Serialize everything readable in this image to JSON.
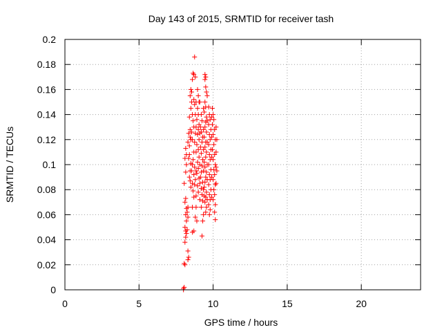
{
  "chart_data": {
    "type": "scatter",
    "title": "Day 143 of 2015, SRMTID for receiver tash",
    "xlabel": "GPS time / hours",
    "ylabel": "SRMTID / TECUs",
    "xlim": [
      0,
      24
    ],
    "ylim": [
      0,
      0.2
    ],
    "xticks": [
      0,
      5,
      10,
      15,
      20
    ],
    "yticks": [
      0,
      0.02,
      0.04,
      0.06,
      0.08,
      0.1,
      0.12,
      0.14,
      0.16,
      0.18,
      0.2
    ],
    "grid": true,
    "marker": "+",
    "series": [
      {
        "name": "SRMTID",
        "color": "#ff0000",
        "points": [
          [
            8.0,
            0.0
          ],
          [
            8.0,
            0.001
          ],
          [
            8.05,
            0.002
          ],
          [
            8.05,
            0.021
          ],
          [
            8.1,
            0.02
          ],
          [
            8.3,
            0.024
          ],
          [
            8.35,
            0.026
          ],
          [
            8.3,
            0.031
          ],
          [
            8.1,
            0.038
          ],
          [
            8.15,
            0.042
          ],
          [
            8.2,
            0.045
          ],
          [
            8.15,
            0.047
          ],
          [
            8.25,
            0.048
          ],
          [
            8.1,
            0.05
          ],
          [
            8.2,
            0.055
          ],
          [
            8.3,
            0.058
          ],
          [
            8.15,
            0.06
          ],
          [
            8.25,
            0.062
          ],
          [
            8.2,
            0.065
          ],
          [
            8.3,
            0.066
          ],
          [
            8.1,
            0.07
          ],
          [
            8.15,
            0.073
          ],
          [
            8.05,
            0.085
          ],
          [
            8.15,
            0.094
          ],
          [
            8.2,
            0.1
          ],
          [
            8.1,
            0.105
          ],
          [
            8.2,
            0.108
          ],
          [
            8.15,
            0.113
          ],
          [
            8.3,
            0.118
          ],
          [
            8.5,
            0.082
          ],
          [
            8.45,
            0.087
          ],
          [
            8.55,
            0.095
          ],
          [
            8.5,
            0.101
          ],
          [
            8.4,
            0.108
          ],
          [
            8.5,
            0.12
          ],
          [
            8.45,
            0.128
          ],
          [
            8.4,
            0.138
          ],
          [
            8.5,
            0.145
          ],
          [
            8.55,
            0.15
          ],
          [
            8.45,
            0.155
          ],
          [
            8.5,
            0.16
          ],
          [
            8.55,
            0.158
          ],
          [
            8.45,
            0.122
          ],
          [
            8.55,
            0.126
          ],
          [
            8.6,
            0.168
          ],
          [
            8.65,
            0.173
          ],
          [
            8.7,
            0.172
          ],
          [
            8.8,
            0.17
          ],
          [
            8.75,
            0.186
          ],
          [
            8.7,
            0.152
          ],
          [
            8.75,
            0.148
          ],
          [
            8.8,
            0.14
          ],
          [
            8.65,
            0.135
          ],
          [
            8.7,
            0.13
          ],
          [
            8.8,
            0.125
          ],
          [
            8.75,
            0.118
          ],
          [
            8.7,
            0.11
          ],
          [
            8.65,
            0.104
          ],
          [
            8.75,
            0.098
          ],
          [
            8.7,
            0.092
          ],
          [
            8.8,
            0.088
          ],
          [
            8.75,
            0.084
          ],
          [
            8.65,
            0.079
          ],
          [
            8.7,
            0.074
          ],
          [
            8.6,
            0.046
          ],
          [
            8.7,
            0.047
          ],
          [
            8.85,
            0.066
          ],
          [
            8.8,
            0.058
          ],
          [
            8.9,
            0.055
          ],
          [
            8.95,
            0.16
          ],
          [
            9.0,
            0.155
          ],
          [
            9.05,
            0.15
          ],
          [
            8.95,
            0.145
          ],
          [
            9.0,
            0.14
          ],
          [
            8.9,
            0.136
          ],
          [
            9.05,
            0.132
          ],
          [
            9.0,
            0.128
          ],
          [
            8.95,
            0.124
          ],
          [
            9.05,
            0.12
          ],
          [
            8.9,
            0.116
          ],
          [
            9.0,
            0.112
          ],
          [
            9.05,
            0.106
          ],
          [
            8.95,
            0.102
          ],
          [
            9.0,
            0.097
          ],
          [
            8.9,
            0.093
          ],
          [
            9.05,
            0.089
          ],
          [
            8.95,
            0.083
          ],
          [
            9.0,
            0.078
          ],
          [
            9.1,
            0.072
          ],
          [
            9.2,
            0.14
          ],
          [
            9.25,
            0.135
          ],
          [
            9.15,
            0.13
          ],
          [
            9.2,
            0.126
          ],
          [
            9.3,
            0.122
          ],
          [
            9.25,
            0.118
          ],
          [
            9.15,
            0.114
          ],
          [
            9.2,
            0.109
          ],
          [
            9.3,
            0.104
          ],
          [
            9.25,
            0.099
          ],
          [
            9.2,
            0.094
          ],
          [
            9.15,
            0.09
          ],
          [
            9.3,
            0.086
          ],
          [
            9.2,
            0.081
          ],
          [
            9.25,
            0.076
          ],
          [
            9.3,
            0.071
          ],
          [
            9.2,
            0.066
          ],
          [
            9.35,
            0.06
          ],
          [
            9.3,
            0.055
          ],
          [
            9.25,
            0.043
          ],
          [
            9.45,
            0.172
          ],
          [
            9.5,
            0.17
          ],
          [
            9.45,
            0.168
          ],
          [
            9.5,
            0.162
          ],
          [
            9.55,
            0.158
          ],
          [
            9.45,
            0.15
          ],
          [
            9.5,
            0.146
          ],
          [
            9.4,
            0.142
          ],
          [
            9.55,
            0.138
          ],
          [
            9.5,
            0.134
          ],
          [
            9.45,
            0.13
          ],
          [
            9.55,
            0.126
          ],
          [
            9.4,
            0.122
          ],
          [
            9.5,
            0.118
          ],
          [
            9.45,
            0.114
          ],
          [
            9.55,
            0.11
          ],
          [
            9.5,
            0.106
          ],
          [
            9.4,
            0.102
          ],
          [
            9.45,
            0.098
          ],
          [
            9.55,
            0.094
          ],
          [
            9.5,
            0.09
          ],
          [
            9.45,
            0.086
          ],
          [
            9.4,
            0.082
          ],
          [
            9.55,
            0.078
          ],
          [
            9.5,
            0.074
          ],
          [
            9.45,
            0.07
          ],
          [
            9.55,
            0.066
          ],
          [
            9.5,
            0.062
          ],
          [
            9.4,
            0.075
          ],
          [
            9.6,
            0.072
          ],
          [
            9.7,
            0.146
          ],
          [
            9.75,
            0.14
          ],
          [
            9.8,
            0.136
          ],
          [
            9.7,
            0.132
          ],
          [
            9.85,
            0.128
          ],
          [
            9.75,
            0.124
          ],
          [
            9.8,
            0.12
          ],
          [
            9.7,
            0.116
          ],
          [
            9.85,
            0.112
          ],
          [
            9.75,
            0.108
          ],
          [
            9.8,
            0.104
          ],
          [
            9.7,
            0.1
          ],
          [
            9.85,
            0.096
          ],
          [
            9.75,
            0.092
          ],
          [
            9.8,
            0.088
          ],
          [
            9.7,
            0.084
          ],
          [
            9.85,
            0.08
          ],
          [
            9.75,
            0.076
          ],
          [
            9.8,
            0.072
          ],
          [
            9.7,
            0.068
          ],
          [
            9.8,
            0.064
          ],
          [
            9.75,
            0.06
          ],
          [
            9.95,
            0.145
          ],
          [
            10.0,
            0.14
          ],
          [
            10.05,
            0.136
          ],
          [
            9.95,
            0.132
          ],
          [
            10.1,
            0.128
          ],
          [
            10.0,
            0.124
          ],
          [
            10.15,
            0.12
          ],
          [
            10.05,
            0.116
          ],
          [
            9.95,
            0.112
          ],
          [
            10.1,
            0.108
          ],
          [
            10.0,
            0.104
          ],
          [
            10.15,
            0.1
          ],
          [
            10.05,
            0.096
          ],
          [
            10.2,
            0.098
          ],
          [
            10.1,
            0.092
          ],
          [
            10.0,
            0.088
          ],
          [
            10.15,
            0.084
          ],
          [
            10.05,
            0.08
          ],
          [
            10.1,
            0.076
          ],
          [
            10.0,
            0.072
          ],
          [
            10.15,
            0.068
          ],
          [
            10.1,
            0.062
          ],
          [
            10.15,
            0.056
          ],
          [
            10.2,
            0.13
          ],
          [
            10.25,
            0.12
          ],
          [
            10.2,
            0.11
          ],
          [
            10.25,
            0.095
          ],
          [
            10.2,
            0.085
          ],
          [
            8.35,
            0.125
          ],
          [
            8.4,
            0.115
          ],
          [
            8.35,
            0.105
          ],
          [
            8.45,
            0.095
          ],
          [
            8.4,
            0.09
          ],
          [
            8.6,
            0.14
          ],
          [
            8.6,
            0.12
          ],
          [
            8.6,
            0.1
          ],
          [
            8.6,
            0.085
          ],
          [
            8.6,
            0.066
          ],
          [
            8.85,
            0.15
          ],
          [
            8.85,
            0.13
          ],
          [
            8.85,
            0.11
          ],
          [
            8.85,
            0.095
          ],
          [
            8.85,
            0.075
          ],
          [
            9.1,
            0.15
          ],
          [
            9.1,
            0.125
          ],
          [
            9.1,
            0.1
          ],
          [
            9.1,
            0.085
          ],
          [
            9.35,
            0.145
          ],
          [
            9.35,
            0.128
          ],
          [
            9.35,
            0.112
          ],
          [
            9.35,
            0.095
          ],
          [
            9.35,
            0.08
          ],
          [
            9.6,
            0.155
          ],
          [
            9.6,
            0.135
          ],
          [
            9.6,
            0.118
          ],
          [
            9.6,
            0.1
          ],
          [
            9.6,
            0.088
          ],
          [
            9.9,
            0.138
          ],
          [
            9.9,
            0.122
          ],
          [
            9.9,
            0.106
          ],
          [
            9.9,
            0.09
          ],
          [
            9.9,
            0.074
          ]
        ]
      }
    ]
  }
}
